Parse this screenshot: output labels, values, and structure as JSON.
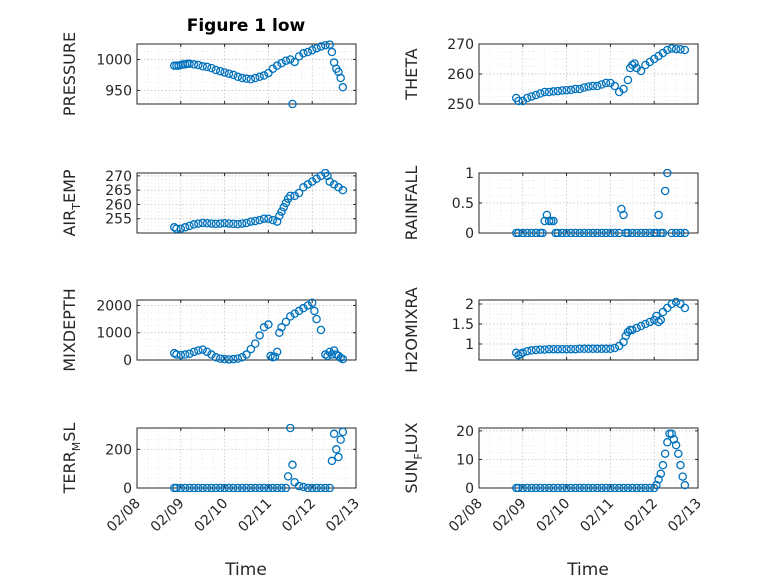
{
  "figure": {
    "title": "Figure 1 low"
  },
  "chart_data": [
    {
      "type": "scatter",
      "title": "Figure 1 low",
      "ylabel": "PRESSURE",
      "ylim": [
        928,
        1025
      ],
      "yticks": [
        950,
        1000
      ],
      "ytick_labels": [
        "950",
        "1000"
      ],
      "xlim": [
        8.0,
        13.0
      ],
      "grid": true,
      "marker_color": "#0072BD",
      "series": [
        {
          "x": [
            8.85,
            8.9,
            8.95,
            9.0,
            9.05,
            9.1,
            9.15,
            9.2,
            9.3,
            9.4,
            9.5,
            9.6,
            9.7,
            9.8,
            9.9,
            10.0,
            10.1,
            10.2,
            10.3,
            10.4,
            10.5,
            10.6,
            10.7,
            10.8,
            10.9,
            11.0,
            11.1,
            11.2,
            11.3,
            11.4,
            11.5,
            11.55,
            11.6,
            11.7,
            11.8,
            11.9,
            12.0,
            12.1,
            12.2,
            12.3,
            12.4,
            12.45,
            12.5,
            12.55,
            12.6,
            12.65,
            12.7
          ],
          "y": [
            990,
            990,
            990,
            991,
            992,
            992,
            993,
            993,
            992,
            991,
            989,
            988,
            986,
            983,
            981,
            979,
            977,
            975,
            972,
            970,
            969,
            968,
            970,
            972,
            974,
            978,
            985,
            990,
            994,
            998,
            1000,
            928,
            996,
            1005,
            1010,
            1012,
            1015,
            1018,
            1021,
            1023,
            1024,
            1012,
            995,
            985,
            980,
            970,
            955
          ]
        }
      ]
    },
    {
      "type": "scatter",
      "ylabel": "THETA",
      "ylim": [
        250,
        270
      ],
      "yticks": [
        250,
        260,
        270
      ],
      "ytick_labels": [
        "250",
        "260",
        "270"
      ],
      "xlim": [
        8.0,
        13.0
      ],
      "grid": true,
      "marker_color": "#0072BD",
      "series": [
        {
          "x": [
            8.85,
            8.9,
            9.0,
            9.1,
            9.2,
            9.3,
            9.4,
            9.5,
            9.6,
            9.7,
            9.8,
            9.9,
            10.0,
            10.1,
            10.2,
            10.3,
            10.4,
            10.5,
            10.6,
            10.7,
            10.8,
            10.9,
            11.0,
            11.1,
            11.2,
            11.3,
            11.4,
            11.45,
            11.5,
            11.55,
            11.6,
            11.7,
            11.8,
            11.9,
            12.0,
            12.1,
            12.2,
            12.3,
            12.4,
            12.5,
            12.6,
            12.7
          ],
          "y": [
            252,
            251,
            251,
            252,
            252.5,
            253,
            253.5,
            254,
            254,
            254.2,
            254.3,
            254.5,
            254.6,
            254.7,
            255,
            255,
            255.5,
            255.8,
            256,
            256,
            256.5,
            257,
            257,
            256,
            254,
            255,
            258,
            262,
            263,
            263.5,
            262,
            261,
            263,
            264,
            265,
            266,
            267,
            268,
            268.5,
            268.3,
            268.2,
            268
          ]
        }
      ]
    },
    {
      "type": "scatter",
      "ylabel": "AIR_TEMP",
      "ylim": [
        250,
        271
      ],
      "yticks": [
        255,
        260,
        265,
        270
      ],
      "ytick_labels": [
        "255",
        "260",
        "265",
        "270"
      ],
      "xlim": [
        8.0,
        13.0
      ],
      "grid": true,
      "marker_color": "#0072BD",
      "series": [
        {
          "x": [
            8.85,
            8.9,
            9.0,
            9.1,
            9.2,
            9.3,
            9.4,
            9.5,
            9.6,
            9.7,
            9.8,
            9.9,
            10.0,
            10.1,
            10.2,
            10.3,
            10.4,
            10.5,
            10.6,
            10.7,
            10.8,
            10.9,
            11.0,
            11.1,
            11.2,
            11.25,
            11.3,
            11.35,
            11.4,
            11.45,
            11.5,
            11.6,
            11.7,
            11.8,
            11.9,
            12.0,
            12.1,
            12.2,
            12.3,
            12.35,
            12.4,
            12.5,
            12.6,
            12.7
          ],
          "y": [
            252,
            251.5,
            251.5,
            252,
            252.5,
            253,
            253.3,
            253.5,
            253.4,
            253.3,
            253.2,
            253.3,
            253.4,
            253.3,
            253.2,
            253.1,
            253.3,
            253.5,
            254,
            254.2,
            254.5,
            255,
            255,
            254.5,
            254,
            256,
            257.5,
            259,
            260.5,
            262,
            263,
            263,
            264,
            266,
            267,
            268,
            269,
            270,
            271,
            270,
            268,
            267,
            266,
            265
          ]
        }
      ]
    },
    {
      "type": "scatter",
      "ylabel": "RAINFALL",
      "ylim": [
        0,
        1
      ],
      "yticks": [
        0,
        0.5,
        1
      ],
      "ytick_labels": [
        "0",
        "0.5",
        "1"
      ],
      "xlim": [
        8.0,
        13.0
      ],
      "grid": true,
      "marker_color": "#0072BD",
      "series": [
        {
          "x": [
            8.85,
            8.9,
            9.0,
            9.1,
            9.2,
            9.3,
            9.4,
            9.45,
            9.5,
            9.55,
            9.6,
            9.65,
            9.7,
            9.75,
            9.8,
            9.9,
            10.0,
            10.1,
            10.2,
            10.3,
            10.4,
            10.5,
            10.6,
            10.7,
            10.8,
            10.9,
            11.0,
            11.1,
            11.2,
            11.25,
            11.3,
            11.35,
            11.4,
            11.5,
            11.6,
            11.7,
            11.8,
            11.9,
            12.0,
            12.05,
            12.1,
            12.15,
            12.2,
            12.25,
            12.3,
            12.4,
            12.5,
            12.6,
            12.7
          ],
          "y": [
            0,
            0,
            0,
            0,
            0,
            0,
            0,
            0,
            0.2,
            0.3,
            0.2,
            0.2,
            0.2,
            0,
            0,
            0,
            0,
            0,
            0,
            0,
            0,
            0,
            0,
            0,
            0,
            0,
            0,
            0,
            0,
            0.4,
            0.3,
            0,
            0,
            0,
            0,
            0,
            0,
            0,
            0,
            0,
            0.3,
            0,
            0,
            0.7,
            1,
            0,
            0,
            0,
            0
          ]
        }
      ]
    },
    {
      "type": "scatter",
      "ylabel": "MIXDEPTH",
      "ylim": [
        0,
        2200
      ],
      "yticks": [
        0,
        1000,
        2000
      ],
      "ytick_labels": [
        "0",
        "1000",
        "2000"
      ],
      "xlim": [
        8.0,
        13.0
      ],
      "grid": true,
      "marker_color": "#0072BD",
      "series": [
        {
          "x": [
            8.85,
            8.9,
            9.0,
            9.1,
            9.2,
            9.3,
            9.4,
            9.5,
            9.6,
            9.7,
            9.8,
            9.9,
            10.0,
            10.1,
            10.2,
            10.3,
            10.4,
            10.5,
            10.6,
            10.7,
            10.8,
            10.9,
            11.0,
            11.05,
            11.1,
            11.15,
            11.2,
            11.25,
            11.3,
            11.4,
            11.5,
            11.6,
            11.7,
            11.8,
            11.9,
            12.0,
            12.05,
            12.1,
            12.2,
            12.3,
            12.35,
            12.4,
            12.45,
            12.5,
            12.55,
            12.6,
            12.65,
            12.7
          ],
          "y": [
            250,
            200,
            180,
            200,
            230,
            300,
            350,
            380,
            300,
            200,
            100,
            50,
            30,
            20,
            30,
            50,
            100,
            200,
            400,
            600,
            900,
            1200,
            1300,
            150,
            100,
            120,
            300,
            1000,
            1200,
            1400,
            1600,
            1700,
            1800,
            1900,
            2000,
            2100,
            1800,
            1500,
            1100,
            200,
            150,
            300,
            200,
            350,
            200,
            150,
            80,
            30
          ]
        }
      ]
    },
    {
      "type": "scatter",
      "ylabel": "H2OMIXRA",
      "ylim": [
        0.6,
        2.1
      ],
      "yticks": [
        1,
        1.5,
        2
      ],
      "ytick_labels": [
        "1",
        "1.5",
        "2"
      ],
      "xlim": [
        8.0,
        13.0
      ],
      "grid": true,
      "marker_color": "#0072BD",
      "series": [
        {
          "x": [
            8.85,
            8.9,
            8.95,
            9.0,
            9.1,
            9.2,
            9.3,
            9.4,
            9.5,
            9.6,
            9.7,
            9.8,
            9.9,
            10.0,
            10.1,
            10.2,
            10.3,
            10.4,
            10.5,
            10.6,
            10.7,
            10.8,
            10.9,
            11.0,
            11.1,
            11.2,
            11.3,
            11.35,
            11.4,
            11.45,
            11.5,
            11.6,
            11.7,
            11.8,
            11.9,
            12.0,
            12.05,
            12.1,
            12.15,
            12.2,
            12.3,
            12.4,
            12.5,
            12.6,
            12.7
          ],
          "y": [
            0.78,
            0.72,
            0.75,
            0.78,
            0.82,
            0.84,
            0.85,
            0.86,
            0.86,
            0.87,
            0.87,
            0.87,
            0.87,
            0.87,
            0.87,
            0.87,
            0.88,
            0.88,
            0.88,
            0.88,
            0.88,
            0.88,
            0.88,
            0.88,
            0.9,
            0.95,
            1.05,
            1.2,
            1.3,
            1.35,
            1.35,
            1.4,
            1.45,
            1.5,
            1.55,
            1.6,
            1.7,
            1.55,
            1.6,
            1.8,
            1.9,
            2.0,
            2.05,
            2.0,
            1.9
          ]
        }
      ]
    },
    {
      "type": "scatter",
      "ylabel": "TERR_MSL",
      "ylim": [
        0,
        310
      ],
      "yticks": [
        0,
        200
      ],
      "ytick_labels": [
        "0",
        "200"
      ],
      "xlim": [
        8.0,
        13.0
      ],
      "grid": true,
      "marker_color": "#0072BD",
      "series": [
        {
          "x": [
            8.85,
            8.9,
            9.0,
            9.1,
            9.2,
            9.3,
            9.4,
            9.5,
            9.6,
            9.7,
            9.8,
            9.9,
            10.0,
            10.1,
            10.2,
            10.3,
            10.4,
            10.5,
            10.6,
            10.7,
            10.8,
            10.9,
            11.0,
            11.1,
            11.2,
            11.3,
            11.4,
            11.45,
            11.5,
            11.55,
            11.6,
            11.7,
            11.8,
            11.9,
            12.0,
            12.1,
            12.2,
            12.3,
            12.4,
            12.45,
            12.5,
            12.55,
            12.6,
            12.65,
            12.7
          ],
          "y": [
            0,
            0,
            0,
            0,
            0,
            0,
            0,
            0,
            0,
            0,
            0,
            0,
            0,
            0,
            0,
            0,
            0,
            0,
            0,
            0,
            0,
            0,
            0,
            0,
            0,
            0,
            0,
            60,
            310,
            120,
            30,
            10,
            5,
            0,
            0,
            0,
            0,
            0,
            0,
            140,
            280,
            200,
            160,
            250,
            290
          ]
        }
      ]
    },
    {
      "type": "scatter",
      "ylabel": "SUN_FLUX",
      "ylim": [
        0,
        21
      ],
      "yticks": [
        0,
        10,
        20
      ],
      "ytick_labels": [
        "0",
        "10",
        "20"
      ],
      "xlim": [
        8.0,
        13.0
      ],
      "grid": true,
      "marker_color": "#0072BD",
      "series": [
        {
          "x": [
            8.85,
            8.9,
            9.0,
            9.1,
            9.2,
            9.3,
            9.4,
            9.5,
            9.6,
            9.7,
            9.8,
            9.9,
            10.0,
            10.1,
            10.2,
            10.3,
            10.4,
            10.5,
            10.6,
            10.7,
            10.8,
            10.9,
            11.0,
            11.1,
            11.2,
            11.3,
            11.4,
            11.5,
            11.6,
            11.7,
            11.8,
            11.9,
            12.0,
            12.05,
            12.1,
            12.15,
            12.2,
            12.25,
            12.3,
            12.35,
            12.4,
            12.45,
            12.5,
            12.55,
            12.6,
            12.65,
            12.7
          ],
          "y": [
            0,
            0,
            0,
            0,
            0,
            0,
            0,
            0,
            0,
            0,
            0,
            0,
            0,
            0,
            0,
            0,
            0,
            0,
            0,
            0,
            0,
            0,
            0,
            0,
            0,
            0,
            0,
            0,
            0,
            0,
            0,
            0,
            0,
            1,
            3,
            5,
            8,
            12,
            16,
            19,
            19,
            17,
            15,
            12,
            8,
            4,
            1
          ]
        }
      ]
    }
  ],
  "x_axis": {
    "label": "Time",
    "tick_values": [
      8,
      9,
      10,
      11,
      12,
      13
    ],
    "tick_labels": [
      "02/08",
      "02/09",
      "02/10",
      "02/11",
      "02/12",
      "02/13"
    ]
  },
  "ylabel_text": [
    {
      "main": "PRESSURE",
      "sub": "",
      "tail": ""
    },
    {
      "main": "THETA",
      "sub": "",
      "tail": ""
    },
    {
      "main": "AIR",
      "sub": "T",
      "tail": "EMP"
    },
    {
      "main": "RAINFALL",
      "sub": "",
      "tail": ""
    },
    {
      "main": "MIXDEPTH",
      "sub": "",
      "tail": ""
    },
    {
      "main": "H2OMIXRA",
      "sub": "",
      "tail": ""
    },
    {
      "main": "TERR",
      "sub": "M",
      "tail": "SL"
    },
    {
      "main": "SUN",
      "sub": "F",
      "tail": "LUX"
    }
  ]
}
